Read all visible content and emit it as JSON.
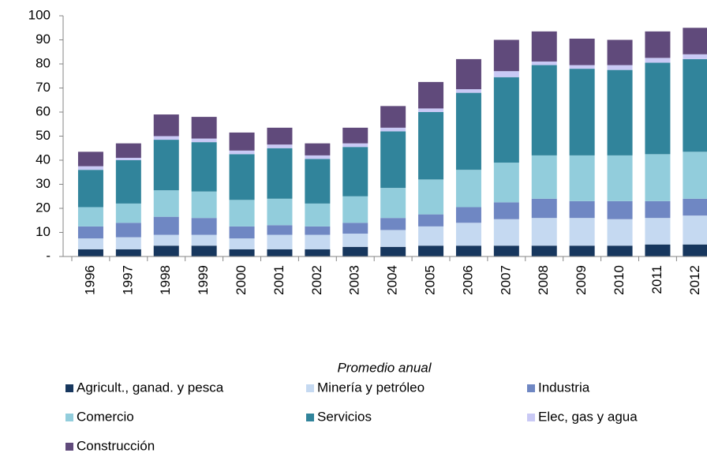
{
  "chart_data": {
    "type": "stacked_bar",
    "x_label": "Promedio anual",
    "categories": [
      "1996",
      "1997",
      "1998",
      "1999",
      "2000",
      "2001",
      "2002",
      "2003",
      "2004",
      "2005",
      "2006",
      "2007",
      "2008",
      "2009",
      "2010",
      "2011",
      "2012"
    ],
    "series": [
      {
        "name": "Agricult., ganad. y pesca",
        "color": "#17375e",
        "values": [
          3,
          3,
          4.5,
          4.5,
          3,
          3,
          3,
          4,
          4,
          4.5,
          4.5,
          4.5,
          4.5,
          4.5,
          4.5,
          5,
          5
        ]
      },
      {
        "name": "Minería y petróleo",
        "color": "#c5d9f1",
        "values": [
          4.5,
          5,
          4.5,
          4.5,
          4.5,
          6,
          6,
          5.5,
          7,
          8,
          9.5,
          11,
          11.5,
          11.5,
          11,
          11,
          12
        ]
      },
      {
        "name": "Industria",
        "color": "#6f87c3",
        "values": [
          5,
          6,
          7.5,
          7,
          5,
          4,
          3.5,
          4.5,
          5,
          5,
          6.5,
          7,
          8,
          7,
          7.5,
          7,
          7
        ]
      },
      {
        "name": "Comercio",
        "color": "#92cddc",
        "values": [
          8,
          8,
          11,
          11,
          11,
          11,
          9.5,
          11,
          12.5,
          14.5,
          15.5,
          16.5,
          18,
          19,
          19,
          19.5,
          19.5
        ]
      },
      {
        "name": "Servicios",
        "color": "#31849b",
        "values": [
          15.5,
          18,
          21,
          20.5,
          19,
          21,
          18.5,
          20.5,
          23.5,
          28,
          32,
          35.5,
          37.5,
          36,
          35.5,
          38,
          38.5
        ]
      },
      {
        "name": "Elec, gas y agua",
        "color": "#c9c9f5",
        "values": [
          1.5,
          1,
          1.5,
          1.5,
          1.5,
          1.5,
          1.5,
          1.5,
          1.5,
          1.5,
          1.5,
          2.5,
          1.5,
          1.5,
          2,
          2,
          2
        ]
      },
      {
        "name": "Construcción",
        "color": "#604a7b",
        "values": [
          6,
          6,
          9,
          9,
          7.5,
          7,
          5,
          6.5,
          9,
          11,
          12.5,
          13,
          12.5,
          11,
          10.5,
          11,
          11
        ]
      }
    ],
    "ylim": [
      0,
      100
    ],
    "yticks": [
      {
        "value": 0,
        "label": "-"
      },
      10,
      20,
      30,
      40,
      50,
      60,
      70,
      80,
      90,
      100
    ]
  }
}
